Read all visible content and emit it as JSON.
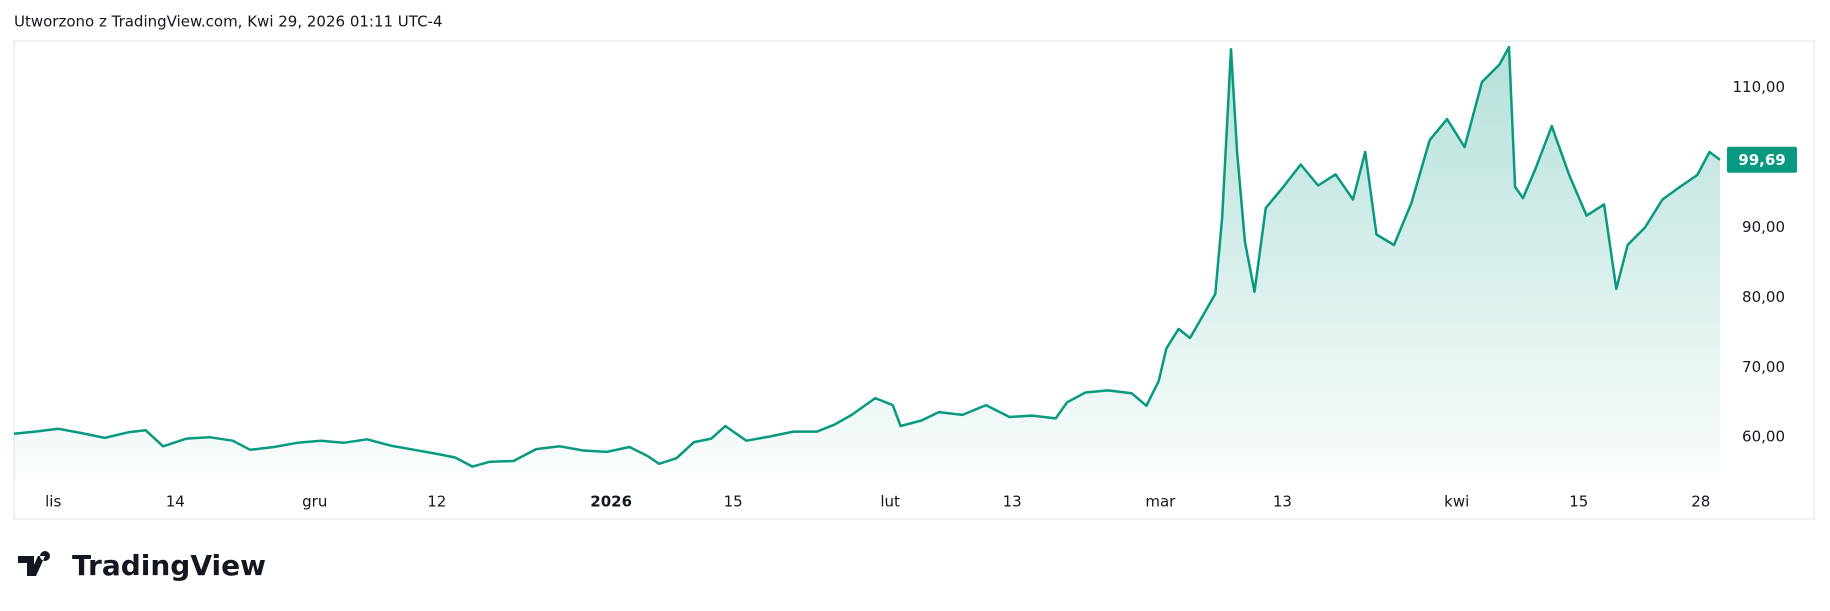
{
  "header": {
    "created": "Utworzono z TradingView.com, Kwi 29, 2026 01:11 UTC-4"
  },
  "chart_data": {
    "type": "area",
    "color": "#089981",
    "x": [
      -0.5,
      1.9,
      4.6,
      7.2,
      9.9,
      12.6,
      14.6,
      16.6,
      19.3,
      21.9,
      24.6,
      26.6,
      29.3,
      32,
      34.7,
      37.3,
      40,
      42.7,
      45.4,
      48.1,
      50.1,
      52.1,
      54.1,
      56.8,
      59.4,
      62.1,
      64.8,
      67.5,
      70.1,
      72.2,
      73.5,
      75.5,
      77.5,
      79.5,
      81.1,
      83.5,
      86.2,
      88.9,
      91.6,
      93.6,
      95.6,
      98.3,
      100.3,
      101.2,
      103.6,
      105.6,
      108.3,
      111,
      113.7,
      116.3,
      119,
      120.3,
      122.4,
      125,
      127.7,
      129.4,
      130.8,
      131.7,
      133.1,
      134.4,
      135.7,
      137.3,
      138.1,
      139.1,
      139.8,
      140.7,
      141.8,
      143.1,
      145.1,
      147.1,
      149.1,
      151.1,
      153.1,
      154.5,
      155.8,
      157.8,
      159.8,
      161.9,
      163.9,
      165.9,
      167.9,
      169.9,
      171,
      171.7,
      172.6,
      174,
      175.9,
      177.9,
      179.9,
      181.9,
      183.3,
      184.6,
      186.6,
      188.6,
      190.6,
      192.6,
      194,
      195.2
    ],
    "values": [
      60.5,
      60.8,
      61.2,
      60.6,
      59.9,
      60.7,
      61,
      58.7,
      59.8,
      60,
      59.5,
      58.2,
      58.6,
      59.2,
      59.5,
      59.2,
      59.7,
      58.8,
      58.2,
      57.6,
      57.1,
      55.8,
      56.5,
      56.6,
      58.3,
      58.7,
      58.1,
      57.9,
      58.6,
      57.3,
      56.2,
      57,
      59.3,
      59.8,
      61.6,
      59.5,
      60.1,
      60.8,
      60.8,
      61.8,
      63.2,
      65.6,
      64.6,
      61.6,
      62.4,
      63.6,
      63.2,
      64.6,
      62.9,
      63.1,
      62.7,
      65,
      66.4,
      66.7,
      66.3,
      64.5,
      68,
      72.7,
      75.5,
      74.2,
      77,
      80.5,
      91.5,
      115.5,
      100.8,
      88,
      80.8,
      92.8,
      95.8,
      99,
      96,
      97.6,
      94,
      100.8,
      89,
      87.5,
      93.5,
      102.5,
      105.5,
      101.5,
      110.8,
      113.3,
      115.8,
      95.8,
      94.2,
      98.3,
      104.5,
      97.5,
      91.7,
      93.3,
      81.2,
      87.5,
      90,
      94,
      95.8,
      97.5,
      100.8,
      99.69
    ],
    "last_value_label": "99,69",
    "xlim": [
      -0.5,
      195.2
    ],
    "xticks": [
      {
        "value": 4,
        "label": "lis"
      },
      {
        "value": 18,
        "label": "14"
      },
      {
        "value": 34,
        "label": "gru"
      },
      {
        "value": 48,
        "label": "12"
      },
      {
        "value": 68,
        "label": "2026"
      },
      {
        "value": 82,
        "label": "15"
      },
      {
        "value": 100,
        "label": "lut"
      },
      {
        "value": 114,
        "label": "13"
      },
      {
        "value": 131,
        "label": "mar"
      },
      {
        "value": 145,
        "label": "13"
      },
      {
        "value": 165,
        "label": "kwi"
      },
      {
        "value": 179,
        "label": "15"
      },
      {
        "value": 193,
        "label": "28"
      }
    ],
    "ylim": [
      54.17,
      116.67
    ],
    "yticks": [
      {
        "value": 60,
        "label": "60,00"
      },
      {
        "value": 70,
        "label": "70,00"
      },
      {
        "value": 80,
        "label": "80,00"
      },
      {
        "value": 90,
        "label": "90,00"
      },
      {
        "value": 110,
        "label": "110,00"
      }
    ]
  },
  "footer": {
    "logo": "TradingView"
  }
}
